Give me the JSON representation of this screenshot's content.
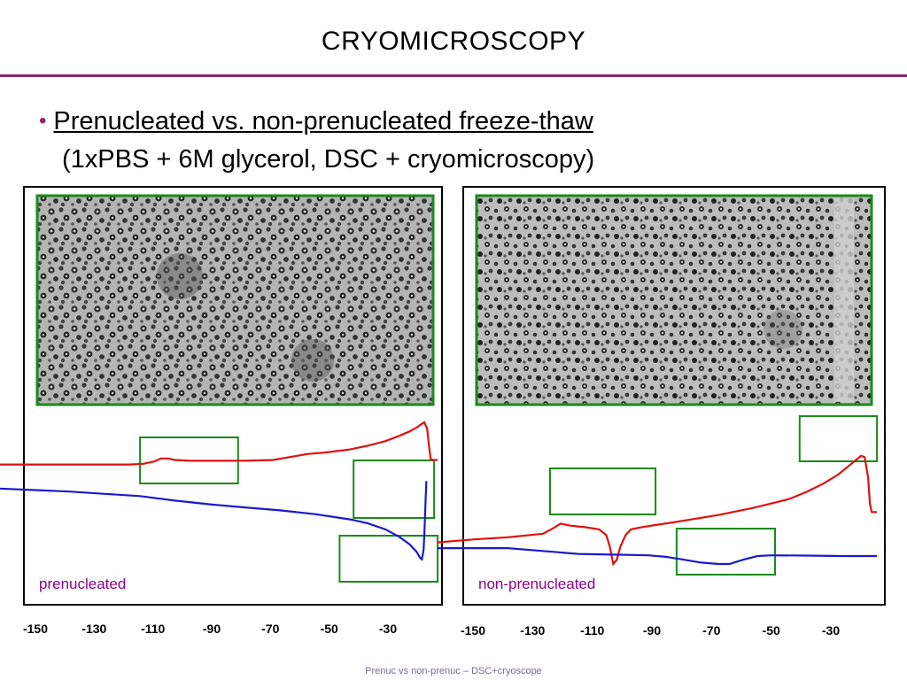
{
  "slide": {
    "title": "CRYOMICROSCOPY",
    "bullet": "Prenucleated vs. non-prenucleated freeze-thaw",
    "subline": "(1xPBS + 6M glycerol, DSC + cryomicroscopy)",
    "footer": "Prenuc vs non-prenuc – DSC+cryoscope"
  },
  "colors": {
    "accent": "#8c2a6e",
    "label": "#8b008b",
    "photo_frame": "#1a8a1a",
    "series_red": "#e01010",
    "series_blue": "#1a1acc"
  },
  "chart_data": [
    {
      "type": "line",
      "label": "prenucleated",
      "x_tick_labels": [
        "-150",
        "-130",
        "-110",
        "-90",
        "-70",
        "-50",
        "-30"
      ],
      "xlim": [
        -150,
        -24
      ],
      "series": [
        {
          "color": "#e01010",
          "points": [
            [
              -150,
              0.72
            ],
            [
              -140,
              0.72
            ],
            [
              -130,
              0.72
            ],
            [
              -120,
              0.72
            ],
            [
              -113,
              0.72
            ],
            [
              -109,
              0.725
            ],
            [
              -106,
              0.74
            ],
            [
              -104,
              0.76
            ],
            [
              -102,
              0.76
            ],
            [
              -100,
              0.75
            ],
            [
              -96,
              0.745
            ],
            [
              -90,
              0.745
            ],
            [
              -80,
              0.745
            ],
            [
              -72,
              0.75
            ],
            [
              -67,
              0.77
            ],
            [
              -62,
              0.79
            ],
            [
              -57,
              0.8
            ],
            [
              -50,
              0.82
            ],
            [
              -45,
              0.845
            ],
            [
              -40,
              0.875
            ],
            [
              -36,
              0.91
            ],
            [
              -33,
              0.94
            ],
            [
              -31,
              0.965
            ],
            [
              -29.5,
              0.99
            ],
            [
              -28.8,
              1.0
            ],
            [
              -28,
              0.96
            ],
            [
              -27.5,
              0.85
            ],
            [
              -27,
              0.76
            ],
            [
              -26.5,
              0.75
            ],
            [
              -25,
              0.75
            ]
          ]
        },
        {
          "color": "#1a1acc",
          "points": [
            [
              -150,
              0.56
            ],
            [
              -140,
              0.55
            ],
            [
              -130,
              0.54
            ],
            [
              -120,
              0.525
            ],
            [
              -110,
              0.51
            ],
            [
              -100,
              0.48
            ],
            [
              -90,
              0.455
            ],
            [
              -80,
              0.435
            ],
            [
              -70,
              0.415
            ],
            [
              -60,
              0.39
            ],
            [
              -50,
              0.355
            ],
            [
              -45,
              0.33
            ],
            [
              -40,
              0.29
            ],
            [
              -36,
              0.24
            ],
            [
              -33,
              0.19
            ],
            [
              -31,
              0.14
            ],
            [
              -30,
              0.1
            ],
            [
              -29.5,
              0.09
            ],
            [
              -29,
              0.15
            ],
            [
              -28.7,
              0.3
            ],
            [
              -28.4,
              0.5
            ],
            [
              -28.2,
              0.61
            ]
          ]
        }
      ],
      "highlight_boxes": [
        {
          "x": [
            -110,
            -82
          ]
        },
        {
          "x": [
            -49,
            -26
          ]
        },
        {
          "x": [
            -53,
            -25
          ]
        }
      ]
    },
    {
      "type": "line",
      "label": "non-prenucleated",
      "x_tick_labels": [
        "-150",
        "-130",
        "-110",
        "-90",
        "-70",
        "-50",
        "-30"
      ],
      "xlim": [
        -150,
        -23
      ],
      "series": [
        {
          "color": "#e01010",
          "points": [
            [
              -150,
              0.15
            ],
            [
              -140,
              0.17
            ],
            [
              -130,
              0.185
            ],
            [
              -120,
              0.21
            ],
            [
              -117,
              0.25
            ],
            [
              -115,
              0.28
            ],
            [
              -112,
              0.265
            ],
            [
              -108,
              0.255
            ],
            [
              -104,
              0.24
            ],
            [
              -102,
              0.2
            ],
            [
              -101,
              0.12
            ],
            [
              -100,
              0.0
            ],
            [
              -99,
              0.03
            ],
            [
              -98,
              0.12
            ],
            [
              -96.5,
              0.2
            ],
            [
              -95,
              0.24
            ],
            [
              -92,
              0.255
            ],
            [
              -88,
              0.27
            ],
            [
              -80,
              0.3
            ],
            [
              -70,
              0.34
            ],
            [
              -60,
              0.39
            ],
            [
              -50,
              0.45
            ],
            [
              -45,
              0.5
            ],
            [
              -40,
              0.56
            ],
            [
              -36,
              0.62
            ],
            [
              -33,
              0.68
            ],
            [
              -31,
              0.72
            ],
            [
              -29.5,
              0.75
            ],
            [
              -28.5,
              0.74
            ],
            [
              -27.5,
              0.6
            ],
            [
              -27,
              0.42
            ],
            [
              -26.5,
              0.36
            ],
            [
              -25,
              0.36
            ]
          ]
        },
        {
          "color": "#1a1acc",
          "points": [
            [
              -150,
              0.11
            ],
            [
              -130,
              0.11
            ],
            [
              -120,
              0.09
            ],
            [
              -110,
              0.07
            ],
            [
              -100,
              0.065
            ],
            [
              -90,
              0.06
            ],
            [
              -85,
              0.05
            ],
            [
              -80,
              0.03
            ],
            [
              -75,
              0.01
            ],
            [
              -70,
              0.0
            ],
            [
              -67,
              0.0
            ],
            [
              -63,
              0.03
            ],
            [
              -59,
              0.055
            ],
            [
              -55,
              0.06
            ],
            [
              -45,
              0.058
            ],
            [
              -35,
              0.055
            ],
            [
              -25,
              0.055
            ]
          ]
        }
      ],
      "highlight_boxes": [
        {
          "x": [
            -118,
            -88
          ]
        },
        {
          "x": [
            -82,
            -54
          ]
        },
        {
          "x": [
            -47,
            -25
          ]
        }
      ]
    }
  ]
}
